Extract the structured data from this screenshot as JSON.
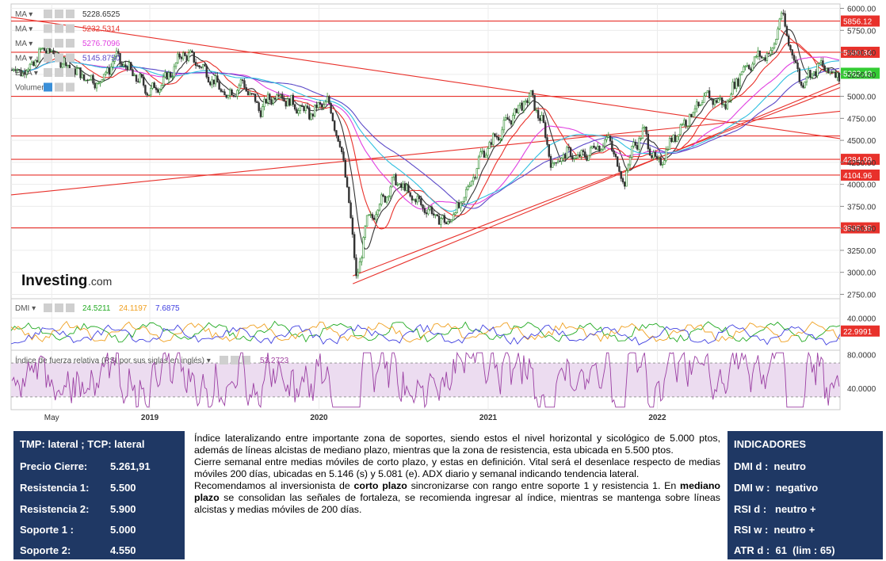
{
  "chart_data": {
    "type": "candlestick",
    "source_logo": "Investing.com",
    "x_axis_labels": [
      "May",
      "2019",
      "2020",
      "2021",
      "2022"
    ],
    "price_panel": {
      "y_ticks": [
        "6000.00",
        "5750.00",
        "5500.00",
        "5250.00",
        "5000.00",
        "4750.00",
        "4500.00",
        "4250.00",
        "4000.00",
        "3750.00",
        "3500.00",
        "3250.00",
        "3000.00",
        "2750.00"
      ],
      "ylim": [
        2700,
        6050
      ],
      "horizontal_levels": [
        {
          "value": 5856.12,
          "label": "5856.12"
        },
        {
          "value": 5500.84,
          "label": "5500.84"
        },
        {
          "value": 5000,
          "label": ""
        },
        {
          "value": 4550,
          "label": ""
        },
        {
          "value": 4284.09,
          "label": "4284.09"
        },
        {
          "value": 4104.96,
          "label": "4104.96"
        },
        {
          "value": 3505.35,
          "label": "3505.35"
        }
      ],
      "current_price_label": "5262.43",
      "legend": [
        {
          "name": "MA",
          "value": "5228.6525",
          "color": "#333333"
        },
        {
          "name": "MA",
          "value": "5232.5314",
          "color": "#e8312b"
        },
        {
          "name": "MA",
          "value": "5276.7096",
          "color": "#e040e0"
        },
        {
          "name": "MA",
          "value": "5145.8750",
          "color": "#5b49c8"
        },
        {
          "name": "EMA",
          "value": "",
          "color": "#30c0e0"
        },
        {
          "name": "Volumen",
          "value": "",
          "color": "#999999"
        }
      ],
      "series": [
        {
          "name": "price",
          "points": [
            [
              2018.28,
              5300
            ],
            [
              2018.38,
              5550
            ],
            [
              2018.48,
              5400
            ],
            [
              2018.58,
              5250
            ],
            [
              2018.7,
              5150
            ],
            [
              2018.8,
              5450
            ],
            [
              2018.9,
              5250
            ],
            [
              2019.0,
              5050
            ],
            [
              2019.1,
              5200
            ],
            [
              2019.2,
              5500
            ],
            [
              2019.3,
              5350
            ],
            [
              2019.45,
              5000
            ],
            [
              2019.55,
              5150
            ],
            [
              2019.65,
              4850
            ],
            [
              2019.75,
              5050
            ],
            [
              2019.85,
              4900
            ],
            [
              2019.95,
              4800
            ],
            [
              2020.05,
              4950
            ],
            [
              2020.12,
              4500
            ],
            [
              2020.18,
              3800
            ],
            [
              2020.22,
              2900
            ],
            [
              2020.28,
              3550
            ],
            [
              2020.35,
              3750
            ],
            [
              2020.45,
              4050
            ],
            [
              2020.55,
              3850
            ],
            [
              2020.65,
              3700
            ],
            [
              2020.75,
              3550
            ],
            [
              2020.85,
              3800
            ],
            [
              2020.95,
              4300
            ],
            [
              2021.05,
              4550
            ],
            [
              2021.15,
              4800
            ],
            [
              2021.25,
              5000
            ],
            [
              2021.32,
              4700
            ],
            [
              2021.38,
              4200
            ],
            [
              2021.45,
              4350
            ],
            [
              2021.55,
              4300
            ],
            [
              2021.65,
              4450
            ],
            [
              2021.72,
              4500
            ],
            [
              2021.8,
              4000
            ],
            [
              2021.85,
              4400
            ],
            [
              2021.92,
              4600
            ],
            [
              2022.0,
              4200
            ],
            [
              2022.1,
              4550
            ],
            [
              2022.2,
              4800
            ],
            [
              2022.3,
              5000
            ],
            [
              2022.4,
              4900
            ],
            [
              2022.5,
              5300
            ],
            [
              2022.6,
              5450
            ],
            [
              2022.68,
              5500
            ],
            [
              2022.73,
              5950
            ],
            [
              2022.78,
              5600
            ],
            [
              2022.85,
              5150
            ],
            [
              2022.9,
              5250
            ],
            [
              2022.97,
              5350
            ],
            [
              2023.03,
              5260
            ]
          ]
        }
      ]
    },
    "dmi_panel": {
      "title": "DMI",
      "values": [
        {
          "value": "24.5211",
          "color": "#22aa22"
        },
        {
          "value": "24.1197",
          "color": "#f0a020"
        },
        {
          "value": "7.6875",
          "color": "#4040e0"
        }
      ],
      "y_ticks": [
        "40.0000"
      ],
      "current_label": "22.9991"
    },
    "rsi_panel": {
      "title": "Índice de fuerza relativa (RSI por sus siglas en inglés)",
      "value": "53.2723",
      "y_ticks": [
        "80.0000",
        "40.0000"
      ]
    }
  },
  "summary_left": {
    "rows": [
      {
        "label": "TMP: lateral ; TCP: lateral",
        "value": ""
      },
      {
        "label": "Precio Cierre:",
        "value": "5.261,91"
      },
      {
        "label": "Resistencia 1:",
        "value": "5.500"
      },
      {
        "label": "Resistencia 2:",
        "value": "5.900"
      },
      {
        "label": "Soporte 1 :",
        "value": "5.000"
      },
      {
        "label": "Soporte 2:",
        "value": "4.550"
      }
    ]
  },
  "commentary": {
    "p1": "Índice lateralizando entre importante zona de soportes, siendo estos el nivel horizontal y sicológico de 5.000 ptos, además de líneas alcistas de mediano plazo, mientras que la zona de resistencia, esta ubicada en 5.500 ptos.",
    "p2": "Cierre semanal entre medias móviles de corto plazo, y estas en definición. Vital será el desenlace respecto de medias móviles 200 días, ubicadas en 5.146 (s) y 5.081 (e). ADX diario y semanal indicando tendencia lateral.",
    "p3_a": "Recomendamos al inversionista de ",
    "p3_b": "corto plazo",
    "p3_c": " sincronizarse con rango entre soporte 1 y resistencia 1. En ",
    "p3_d": "mediano plazo",
    "p3_e": " se consolidan las señales de fortaleza, se recomienda ingresar al índice, mientras se mantenga sobre líneas alcistas y medias móviles de 200 días."
  },
  "summary_right": {
    "title": "INDICADORES",
    "rows": [
      "DMI d :  neutro",
      "DMI w :  negativo",
      "RSI d :   neutro +",
      "RSI w :  neutro +",
      "ATR d :  61  (lim : 65)"
    ]
  },
  "colors": {
    "panel_bg": "#1f3864",
    "level_line": "#e8312b",
    "current_price": "#33cc33"
  }
}
